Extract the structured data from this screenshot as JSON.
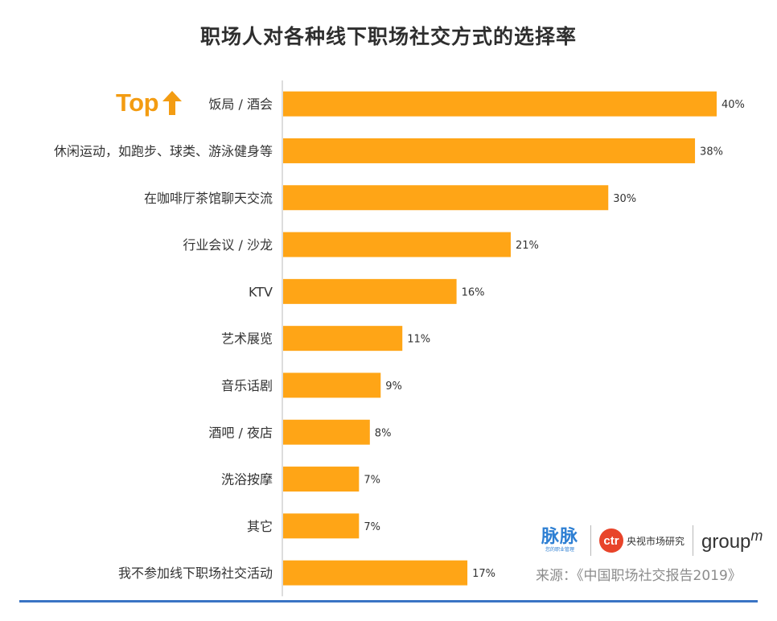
{
  "chart_data": {
    "type": "bar",
    "orientation": "horizontal",
    "title": "职场人对各种线下职场社交方式的选择率",
    "categories": [
      "饭局 / 酒会",
      "休闲运动，如跑步、球类、游泳健身等",
      "在咖啡厅茶馆聊天交流",
      "行业会议 / 沙龙",
      "KTV",
      "艺术展览",
      "音乐话剧",
      "酒吧 / 夜店",
      "洗浴按摩",
      "其它",
      "我不参加线下职场社交活动"
    ],
    "values": [
      40,
      38,
      30,
      21,
      16,
      11,
      9,
      8,
      7,
      7,
      17
    ],
    "value_labels": [
      "40%",
      "38%",
      "30%",
      "21%",
      "16%",
      "11%",
      "9%",
      "8%",
      "7%",
      "7%",
      "17%"
    ],
    "unit": "%",
    "xlim": [
      0,
      40
    ],
    "grid": false,
    "bar_color": "#ffa516"
  },
  "annotation": {
    "top_label": "Top",
    "icon": "up-arrow-icon"
  },
  "logos": {
    "maimai_name": "脉脉",
    "maimai_tagline": "您的职业管理",
    "ctr_mark": "ctr",
    "ctr_name": "央视市场研究",
    "groupm_base": "group",
    "groupm_m": "m"
  },
  "source": "来源：《中国职场社交报告2019》",
  "colors": {
    "accent": "#f39c12",
    "rule": "#3a74c4",
    "axis": "#bbbbbb"
  }
}
